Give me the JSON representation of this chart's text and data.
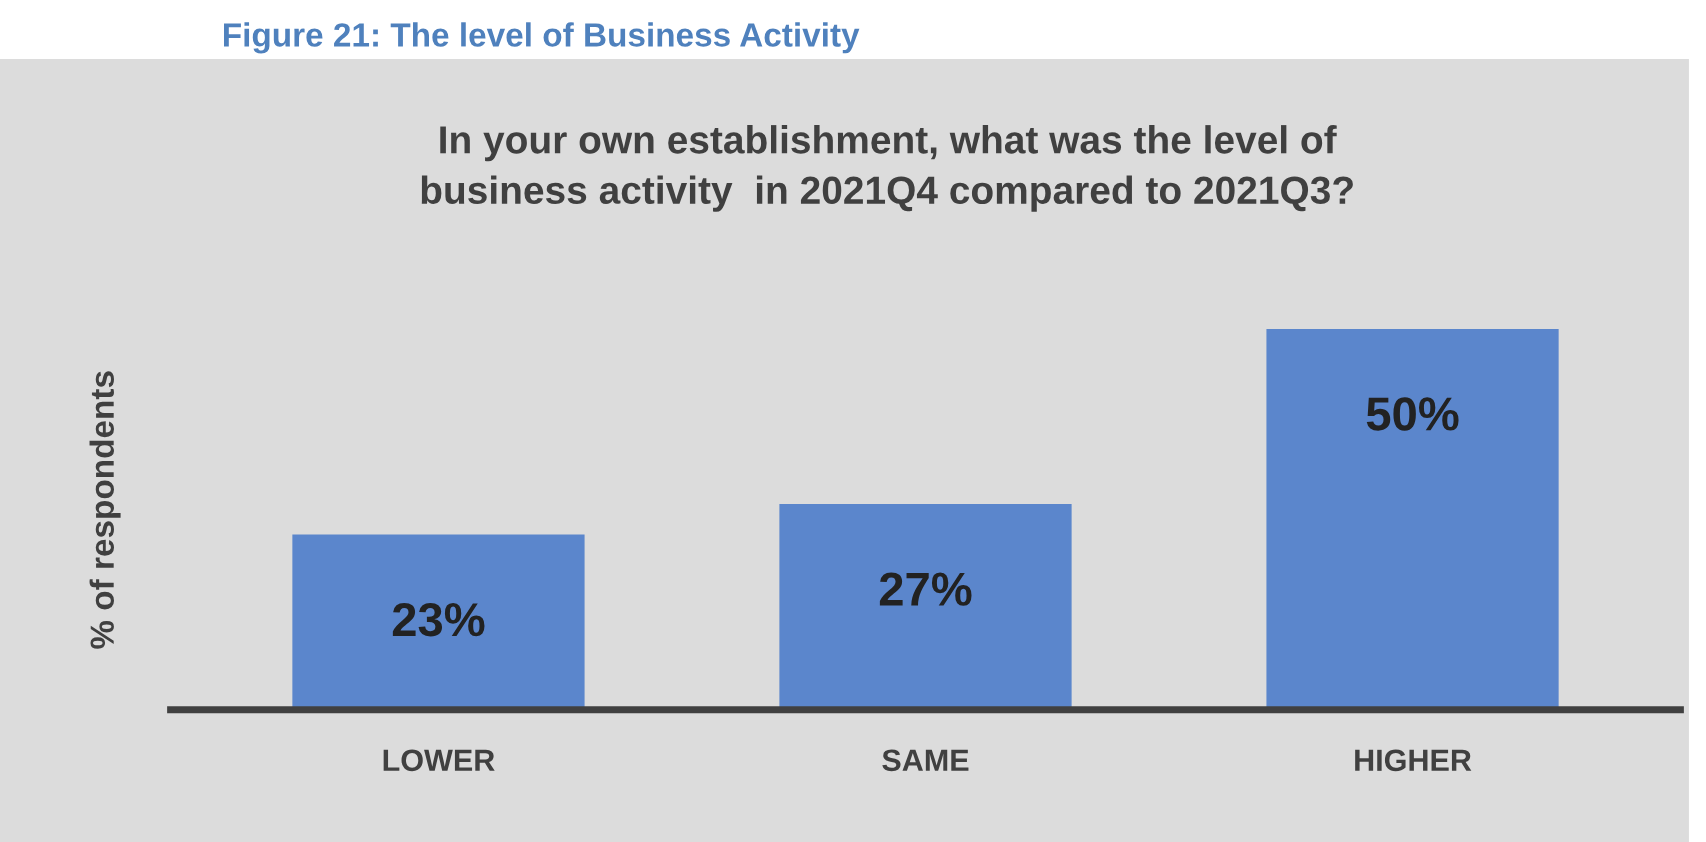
{
  "chart_data": {
    "type": "bar",
    "title": "In your own establishment, what was the level of\nbusiness activity  in 2021Q4 compared to 2021Q3?",
    "subtitle": "Figure 21: The level of Business Activity",
    "ylabel": "% of respondents",
    "categories": [
      "LOWER",
      "SAME",
      "HIGHER"
    ],
    "values": [
      23,
      27,
      50
    ],
    "value_labels": [
      "23%",
      "27%",
      "50%"
    ],
    "color": "#5b86cc",
    "grid": false,
    "legend": false
  }
}
